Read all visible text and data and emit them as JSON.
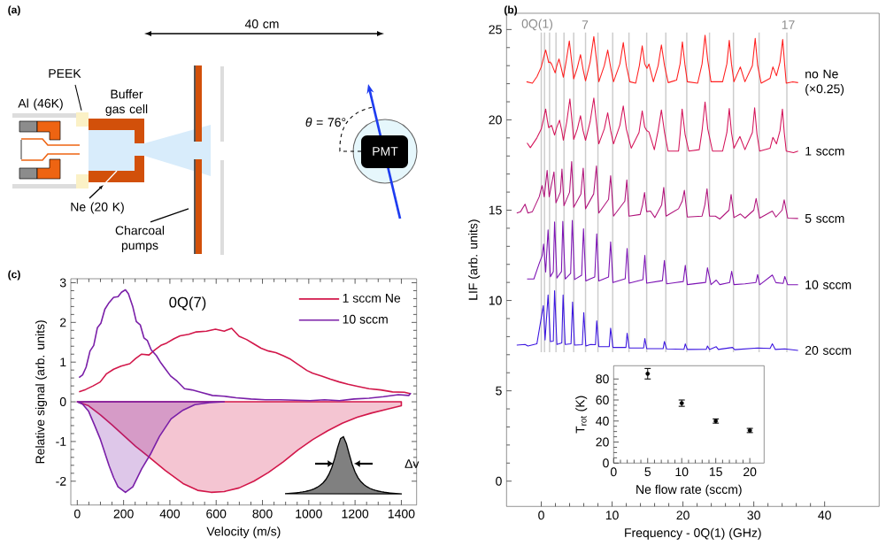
{
  "chart_data": [
    {
      "type": "other",
      "title": "(a)",
      "annotations": [
        "40 cm",
        "PEEK",
        "Al (46K)",
        "Buffer gas cell",
        "Ne (20 K)",
        "Charcoal pumps",
        "*θ* = 76°",
        "PMT"
      ]
    },
    {
      "type": "line",
      "title": "(b)",
      "xlabel": "Frequency - 0Q(1) (GHz)",
      "ylabel": "LIF (arb. units)",
      "xlim": [
        -4.9,
        47.7
      ],
      "ylim": [
        -1.4,
        25.9
      ],
      "xticks": [
        0,
        10,
        20,
        30,
        40
      ],
      "yticks": [
        0,
        5,
        10,
        15,
        20,
        25
      ],
      "annotations": [
        "0Q(1)",
        "7",
        "17"
      ],
      "ref_lines": [
        {
          "axis": "x",
          "value": 0,
          "color": "#cccccc"
        },
        {
          "axis": "x",
          "value": 0.46,
          "color": "#cccccc"
        },
        {
          "axis": "x",
          "value": 1.17,
          "color": "#cccccc"
        },
        {
          "axis": "x",
          "value": 2.08,
          "color": "#cccccc"
        },
        {
          "axis": "x",
          "value": 3.21,
          "color": "#cccccc"
        },
        {
          "axis": "x",
          "value": 4.58,
          "color": "#cccccc"
        },
        {
          "axis": "x",
          "value": 6.25,
          "color": "#cccccc"
        },
        {
          "axis": "x",
          "value": 8.0,
          "color": "#cccccc"
        },
        {
          "axis": "x",
          "value": 10.08,
          "color": "#cccccc"
        },
        {
          "axis": "x",
          "value": 12.38,
          "color": "#cccccc"
        },
        {
          "axis": "x",
          "value": 14.88,
          "color": "#cccccc"
        },
        {
          "axis": "x",
          "value": 17.58,
          "color": "#cccccc"
        },
        {
          "axis": "x",
          "value": 20.54,
          "color": "#cccccc"
        },
        {
          "axis": "x",
          "value": 23.75,
          "color": "#cccccc"
        },
        {
          "axis": "x",
          "value": 27.13,
          "color": "#cccccc"
        },
        {
          "axis": "x",
          "value": 30.75,
          "color": "#cccccc"
        },
        {
          "axis": "x",
          "value": 34.67,
          "color": "#cccccc"
        }
      ],
      "series": [
        {
          "name": "no Ne (×0.25)",
          "color": "#ff1f1f",
          "x": [
            -2.08,
            -1.25,
            -0.6,
            0,
            0.3,
            0.62,
            0.85,
            1.04,
            1.25,
            1.46,
            1.96,
            2.2,
            2.5,
            2.8,
            3.12,
            3.5,
            3.96,
            4.3,
            4.58,
            5.1,
            5.54,
            5.9,
            6.25,
            6.9,
            7.42,
            7.8,
            8.13,
            8.9,
            9.38,
            9.8,
            10.2,
            11.1,
            11.58,
            12.0,
            12.5,
            13.33,
            13.85,
            14.25,
            14.6,
            14.92,
            15.2,
            15.83,
            16.5,
            16.96,
            17.4,
            17.92,
            19.1,
            19.6,
            19.92,
            20.3,
            20.62,
            22.08,
            22.7,
            23.12,
            23.5,
            23.96,
            25.6,
            26.2,
            26.54,
            26.85,
            27.2,
            28.1,
            28.75,
            29.8,
            30.2,
            30.55,
            31.04,
            32.3,
            32.7,
            33.2,
            33.7,
            34.08,
            34.35,
            34.58,
            35.5,
            36.25
          ],
          "values": [
            22.11,
            22.03,
            22.4,
            22.93,
            23.4,
            23.87,
            23.5,
            23.17,
            23.2,
            23.09,
            22.6,
            23.0,
            23.37,
            22.9,
            22.36,
            23.2,
            24.37,
            23.2,
            22.27,
            22.9,
            23.61,
            22.8,
            22.16,
            23.2,
            24.61,
            23.3,
            22.11,
            23.0,
            23.86,
            22.9,
            22.11,
            23.1,
            24.28,
            23.0,
            22.11,
            22.03,
            23.0,
            24.1,
            23.1,
            22.85,
            23.09,
            22.11,
            23.0,
            24.15,
            23.0,
            22.06,
            22.2,
            23.1,
            24.32,
            23.0,
            22.11,
            22.03,
            23.1,
            24.68,
            23.3,
            22.11,
            22.11,
            23.1,
            24.4,
            23.1,
            22.11,
            22.93,
            22.11,
            23.0,
            24.51,
            23.0,
            22.03,
            22.3,
            22.93,
            22.44,
            23.2,
            24.45,
            23.1,
            22.03,
            22.1,
            22.06
          ]
        },
        {
          "name": "1 sccm",
          "color": "#d4145a",
          "x": [
            -2.0,
            -1.54,
            -0.62,
            0,
            0.3,
            0.62,
            0.85,
            1.04,
            1.46,
            1.88,
            2.2,
            2.58,
            2.9,
            3.12,
            3.6,
            4.04,
            4.35,
            4.58,
            5.1,
            5.54,
            5.9,
            6.25,
            6.9,
            7.42,
            7.8,
            8.12,
            8.9,
            9.38,
            9.8,
            10.2,
            11.1,
            11.58,
            12.0,
            12.7,
            13.8,
            14.25,
            14.6,
            14.88,
            15.2,
            15.96,
            16.5,
            16.96,
            17.4,
            17.9,
            19.38,
            19.6,
            19.88,
            20.3,
            20.83,
            22.3,
            22.7,
            23.12,
            23.5,
            24.17,
            25.6,
            26.2,
            26.54,
            26.85,
            27.2,
            28.04,
            28.75,
            29.8,
            30.12,
            30.45,
            30.83,
            32.3,
            32.7,
            33.2,
            33.7,
            34.04,
            34.3,
            34.58,
            35.6,
            36.25
          ],
          "values": [
            18.72,
            18.46,
            19.0,
            19.49,
            20.0,
            20.6,
            20.0,
            19.57,
            19.69,
            19.16,
            19.6,
            19.98,
            19.4,
            18.87,
            19.9,
            21.16,
            19.9,
            18.92,
            19.5,
            20.23,
            19.4,
            18.87,
            19.9,
            21.21,
            19.8,
            18.67,
            19.5,
            20.39,
            19.4,
            18.67,
            19.7,
            20.77,
            19.5,
            18.43,
            19.3,
            20.5,
            19.6,
            19.41,
            19.33,
            18.35,
            19.4,
            20.55,
            19.3,
            18.27,
            18.27,
            19.2,
            20.6,
            19.2,
            18.27,
            18.35,
            19.4,
            20.99,
            19.5,
            18.27,
            18.27,
            19.3,
            20.63,
            19.3,
            18.43,
            19.08,
            18.35,
            19.3,
            20.67,
            19.2,
            18.27,
            18.43,
            19.03,
            18.67,
            19.4,
            20.59,
            19.3,
            18.27,
            18.18,
            18.27
          ]
        },
        {
          "name": "5 sccm",
          "color": "#b0127a",
          "x": [
            -3.46,
            -2.92,
            -2.29,
            -1.88,
            -1.25,
            -0.29,
            0.12,
            0.42,
            0.83,
            1.12,
            1.79,
            2.08,
            2.7,
            2.92,
            3.21,
            4.0,
            4.29,
            4.58,
            5.6,
            5.92,
            6.25,
            7.4,
            7.79,
            8.12,
            9.5,
            9.79,
            10.2,
            11.8,
            12.08,
            12.38,
            13.96,
            14.3,
            14.58,
            14.88,
            15.42,
            16.04,
            17.0,
            17.29,
            17.62,
            19.38,
            19.9,
            20.2,
            20.62,
            22.7,
            23.1,
            23.4,
            23.75,
            24.58,
            25.2,
            26.5,
            26.8,
            27.2,
            28.12,
            28.75,
            30.0,
            30.33,
            30.83,
            32.62,
            33.12,
            34.0,
            34.29,
            34.79,
            36.25
          ],
          "values": [
            14.84,
            14.92,
            15.33,
            14.84,
            14.92,
            15.74,
            16.36,
            15.74,
            17.2,
            15.74,
            17.12,
            15.41,
            16.0,
            17.28,
            15.25,
            16.0,
            17.69,
            15.16,
            15.9,
            17.33,
            15.08,
            15.9,
            17.45,
            14.84,
            15.6,
            16.91,
            14.67,
            15.5,
            16.68,
            14.67,
            14.76,
            15.3,
            15.98,
            14.92,
            14.95,
            14.59,
            15.3,
            16.26,
            14.67,
            15.08,
            15.5,
            16.1,
            14.62,
            14.67,
            15.3,
            16.19,
            14.67,
            14.67,
            14.51,
            15.0,
            15.87,
            14.59,
            14.79,
            14.56,
            15.0,
            15.65,
            14.56,
            14.95,
            14.62,
            15.0,
            15.57,
            14.56,
            14.54
          ]
        },
        {
          "name": "10 sccm",
          "color": "#7c12b4",
          "x": [
            -2.0,
            -1.04,
            -0.21,
            0.12,
            0.33,
            0.62,
            0.96,
            1.29,
            1.7,
            1.88,
            2.21,
            2.85,
            3.04,
            3.38,
            4.15,
            4.38,
            4.7,
            5.7,
            5.96,
            6.29,
            6.88,
            7.55,
            7.83,
            8.12,
            9.5,
            9.79,
            10.12,
            11.85,
            12.12,
            12.4,
            14.35,
            14.62,
            14.88,
            17.1,
            17.38,
            17.7,
            20.05,
            20.33,
            20.62,
            23.2,
            23.46,
            23.96,
            24.7,
            25.2,
            26.6,
            26.88,
            27.2,
            28.75,
            30.3,
            30.54,
            30.83,
            32.62,
            33.12,
            34.15,
            34.38,
            34.79,
            36.25
          ],
          "values": [
            11.19,
            11.19,
            12.14,
            12.47,
            13.12,
            11.57,
            13.91,
            11.32,
            11.6,
            14.35,
            11.24,
            11.6,
            14.38,
            11.19,
            11.5,
            14.43,
            11.16,
            11.4,
            13.97,
            11.08,
            11.19,
            11.3,
            13.69,
            11.08,
            11.3,
            13.25,
            10.99,
            11.2,
            12.88,
            10.96,
            11.15,
            12.5,
            10.96,
            11.1,
            12.22,
            10.92,
            11.05,
            11.95,
            10.88,
            11.0,
            11.81,
            10.88,
            11.13,
            10.88,
            11.0,
            11.62,
            10.88,
            10.92,
            11.0,
            11.44,
            10.87,
            11.41,
            10.99,
            10.95,
            11.33,
            10.87,
            10.87
          ]
        },
        {
          "name": "20 sccm",
          "color": "#3a14e0",
          "x": [
            -3.46,
            -2.29,
            -1.88,
            -0.62,
            -0.21,
            0.29,
            0.54,
            0.96,
            1.29,
            1.7,
            1.88,
            2.21,
            2.9,
            3.08,
            3.38,
            4.2,
            4.42,
            4.7,
            5.8,
            6.0,
            6.29,
            6.96,
            7.65,
            7.83,
            8.12,
            9.6,
            9.79,
            10.12,
            11.95,
            12.12,
            12.4,
            14.45,
            14.62,
            14.88,
            17.2,
            17.38,
            17.7,
            20.15,
            20.33,
            20.62,
            23.3,
            23.46,
            23.75,
            24.7,
            25.0,
            27.0,
            27.3,
            30.54,
            32.3,
            32.62,
            33.04,
            34.38,
            36.25
          ],
          "values": [
            7.53,
            7.57,
            7.48,
            7.6,
            8.55,
            9.72,
            7.81,
            10.31,
            7.73,
            7.75,
            10.54,
            7.57,
            7.65,
            10.31,
            7.57,
            7.6,
            9.92,
            7.53,
            7.55,
            9.33,
            7.48,
            7.57,
            7.55,
            8.87,
            7.44,
            7.45,
            8.47,
            7.4,
            7.4,
            8.19,
            7.37,
            7.37,
            7.89,
            7.34,
            7.33,
            7.73,
            7.32,
            7.3,
            7.6,
            7.29,
            7.3,
            7.48,
            7.29,
            7.44,
            7.29,
            7.4,
            7.28,
            7.37,
            7.35,
            7.6,
            7.29,
            7.32,
            7.24
          ]
        }
      ]
    },
    {
      "type": "scatter",
      "xlabel": "Ne flow rate (sccm)",
      "ylabel": "T$_{rot}$ (K)",
      "xlim": [
        0,
        22.1
      ],
      "ylim": [
        0,
        92.6
      ],
      "xticks": [
        0,
        5,
        10,
        15,
        20
      ],
      "yticks": [
        0,
        20,
        40,
        60,
        80
      ],
      "marker": "circle",
      "color": "#000000",
      "x": [
        5,
        10,
        15,
        20
      ],
      "values": [
        85,
        57,
        40,
        31
      ],
      "errors": [
        5,
        3,
        2,
        2
      ]
    },
    {
      "type": "line",
      "title": "(c)",
      "annotations": [
        "0Q(7)",
        "Δv"
      ],
      "xlabel": "Velocity (m/s)",
      "ylabel": "Relative signal (arb. units)",
      "xlim": [
        -28,
        1466
      ],
      "ylim": [
        -2.6,
        3.1
      ],
      "xticks": [
        0,
        200,
        400,
        600,
        800,
        1000,
        1200,
        1400
      ],
      "yticks": [
        -2,
        -1,
        0,
        1,
        2,
        3
      ],
      "legend": "top right",
      "series": [
        {
          "name": "1 sccm Ne",
          "color": "#d2174a",
          "x": [
            7.6,
            36,
            68,
            99,
            125,
            157,
            189,
            227,
            252,
            278,
            310,
            335,
            361,
            386,
            418,
            444,
            482,
            514,
            558,
            597,
            635,
            667,
            699,
            731,
            762,
            794,
            826,
            858,
            890,
            922,
            954,
            992,
            1017,
            1056,
            1094,
            1132,
            1170,
            1209,
            1260,
            1311,
            1362,
            1413,
            1441
          ],
          "values": [
            0.25,
            0.31,
            0.4,
            0.5,
            0.7,
            0.82,
            0.9,
            0.96,
            1.09,
            1.2,
            1.18,
            1.31,
            1.42,
            1.48,
            1.59,
            1.66,
            1.7,
            1.76,
            1.78,
            1.83,
            1.78,
            1.85,
            1.65,
            1.57,
            1.46,
            1.35,
            1.28,
            1.24,
            1.16,
            1.07,
            0.94,
            0.79,
            0.72,
            0.65,
            0.57,
            0.5,
            0.44,
            0.39,
            0.33,
            0.3,
            0.25,
            0.24,
            0.2
          ]
        },
        {
          "name": "10 sccm",
          "color": "#7a1fa8",
          "x": [
            7.6,
            23,
            38,
            55,
            71,
            87,
            102,
            119,
            135,
            157,
            176,
            191,
            208,
            221,
            240,
            255,
            272,
            288,
            303,
            319,
            342,
            361,
            380,
            403,
            431,
            463,
            495,
            533,
            584,
            635,
            686,
            750,
            813,
            877,
            941,
            1005,
            1068,
            1132,
            1196,
            1260,
            1323,
            1387,
            1432,
            1441
          ],
          "values": [
            0.61,
            0.68,
            0.87,
            1.28,
            1.42,
            1.87,
            1.98,
            2.33,
            2.48,
            2.63,
            2.65,
            2.76,
            2.82,
            2.72,
            2.39,
            2.02,
            1.94,
            1.61,
            1.54,
            1.31,
            1.16,
            0.98,
            0.83,
            0.65,
            0.52,
            0.33,
            0.3,
            0.24,
            0.16,
            0.14,
            0.1,
            0.07,
            0.05,
            0.05,
            0.04,
            0.03,
            0.05,
            0.03,
            0.07,
            0.09,
            0.13,
            0.18,
            0.16,
            0.22
          ]
        },
        {
          "type": "area",
          "color": "#d2174a",
          "x": [
            0,
            49,
            100,
            150,
            201,
            252,
            314,
            380,
            457,
            520,
            578,
            635,
            699,
            763,
            826,
            890,
            954,
            1018,
            1082,
            1145,
            1209,
            1273,
            1337,
            1400
          ],
          "values": [
            0,
            -0.1,
            -0.33,
            -0.58,
            -0.85,
            -1.12,
            -1.41,
            -1.73,
            -2.06,
            -2.23,
            -2.28,
            -2.26,
            -2.17,
            -2.0,
            -1.78,
            -1.51,
            -1.21,
            -0.95,
            -0.73,
            -0.54,
            -0.39,
            -0.28,
            -0.19,
            -0.1
          ]
        },
        {
          "type": "area",
          "color": "#7a1fa8",
          "x": [
            0,
            23,
            49,
            74,
            100,
            125,
            138,
            157,
            176,
            208,
            240,
            278,
            316,
            355,
            405,
            457,
            508,
            571,
            635
          ],
          "values": [
            0,
            -0.06,
            -0.24,
            -0.58,
            -0.95,
            -1.39,
            -1.62,
            -1.91,
            -2.14,
            -2.28,
            -2.14,
            -1.69,
            -1.32,
            -0.87,
            -0.43,
            -0.21,
            -0.07,
            -0.02,
            0
          ]
        }
      ]
    }
  ]
}
